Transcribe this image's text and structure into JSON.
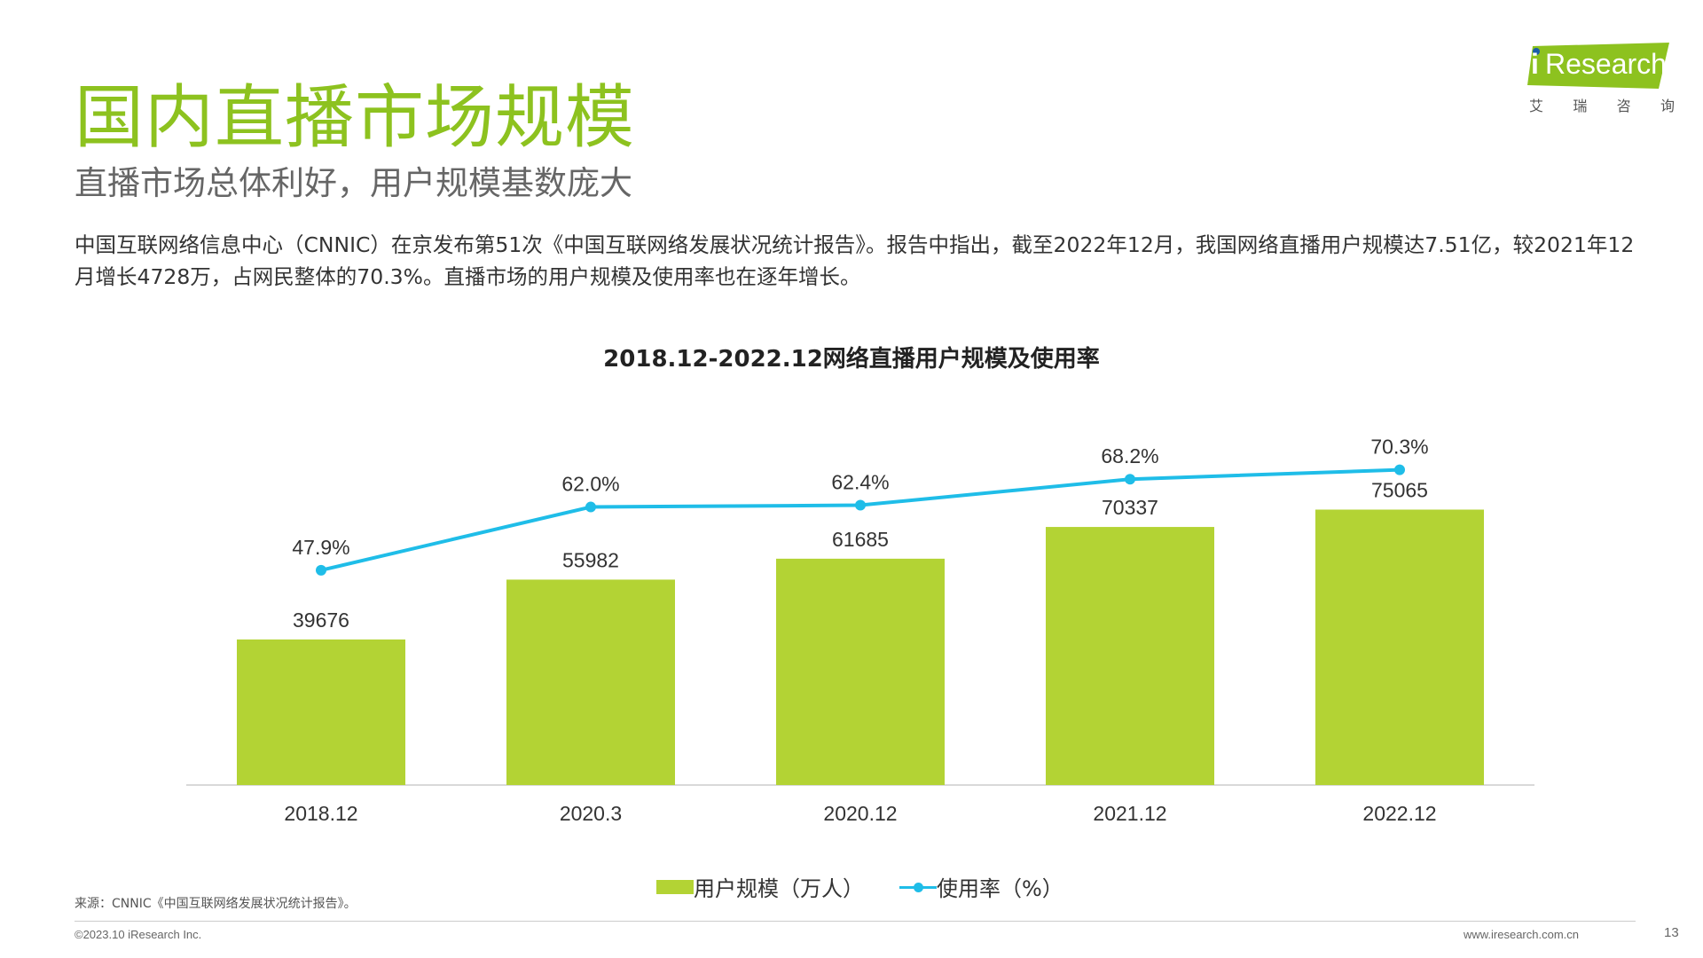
{
  "header": {
    "title": "国内直播市场规模",
    "subtitle": "直播市场总体利好，用户规模基数庞大",
    "body": "中国互联网络信息中心（CNNIC）在京发布第51次《中国互联网络发展状况统计报告》。报告中指出，截至2022年12月，我国网络直播用户规模达7.51亿，较2021年12月增长4728万，占网民整体的70.3%。直播市场的用户规模及使用率也在逐年增长。"
  },
  "logo": {
    "i": "i",
    "brand": "Research",
    "chars": [
      "艾",
      "瑞",
      "咨",
      "询"
    ],
    "color": "#8dc21f"
  },
  "chart_data": {
    "type": "bar",
    "title": "2018.12-2022.12网络直播用户规模及使用率",
    "categories": [
      "2018.12",
      "2020.3",
      "2020.12",
      "2021.12",
      "2022.12"
    ],
    "series": [
      {
        "name": "用户规模（万人）",
        "type": "bar",
        "values": [
          39676,
          55982,
          61685,
          70337,
          75065
        ],
        "labels": [
          "39676",
          "55982",
          "61685",
          "70337",
          "75065"
        ],
        "color": "#b3d334"
      },
      {
        "name": "使用率（%）",
        "type": "line",
        "values": [
          47.9,
          62.0,
          62.4,
          68.2,
          70.3
        ],
        "labels": [
          "47.9%",
          "62.0%",
          "62.4%",
          "68.2%",
          "70.3%"
        ],
        "color": "#1fbde8"
      }
    ],
    "xlabel": "",
    "ylabel": "",
    "ylim": [
      0,
      110000
    ],
    "y2lim": [
      0,
      90
    ],
    "grid": false,
    "legend": "bottom"
  },
  "footer": {
    "source": "来源：CNNIC《中国互联网络发展状况统计报告》。",
    "copyright": "©2023.10 iResearch Inc.",
    "website": "www.iresearch.com.cn",
    "page": "13"
  }
}
